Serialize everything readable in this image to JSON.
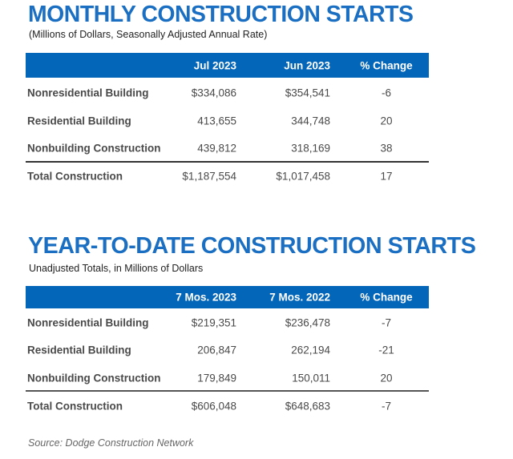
{
  "monthly": {
    "title": "MONTHLY CONSTRUCTION STARTS",
    "subtitle": "(Millions of Dollars, Seasonally Adjusted Annual Rate)",
    "headers": [
      "",
      "Jul 2023",
      "Jun 2023",
      "% Change"
    ],
    "rows": [
      [
        "Nonresidential Building",
        "$334,086",
        "$354,541",
        "-6"
      ],
      [
        "Residential Building",
        "413,655",
        "344,748",
        "20"
      ],
      [
        "Nonbuilding Construction",
        "439,812",
        "318,169",
        "38"
      ]
    ],
    "total": [
      "Total Construction",
      "$1,187,554",
      "$1,017,458",
      "17"
    ]
  },
  "ytd": {
    "title": "YEAR-TO-DATE CONSTRUCTION STARTS",
    "subtitle": "Unadjusted Totals, in Millions of Dollars",
    "headers": [
      "",
      "7 Mos. 2023",
      "7 Mos. 2022",
      "% Change"
    ],
    "rows": [
      [
        "Nonresidential Building",
        "$219,351",
        "$236,478",
        "-7"
      ],
      [
        "Residential Building",
        "206,847",
        "262,194",
        "-21"
      ],
      [
        "Nonbuilding Construction",
        "179,849",
        "150,011",
        "20"
      ]
    ],
    "total": [
      "Total Construction",
      "$606,048",
      "$648,683",
      "-7"
    ]
  },
  "source": "Source: Dodge Construction Network",
  "colors": {
    "title": "#1b6fc2",
    "header_bg": "#0466b8"
  }
}
